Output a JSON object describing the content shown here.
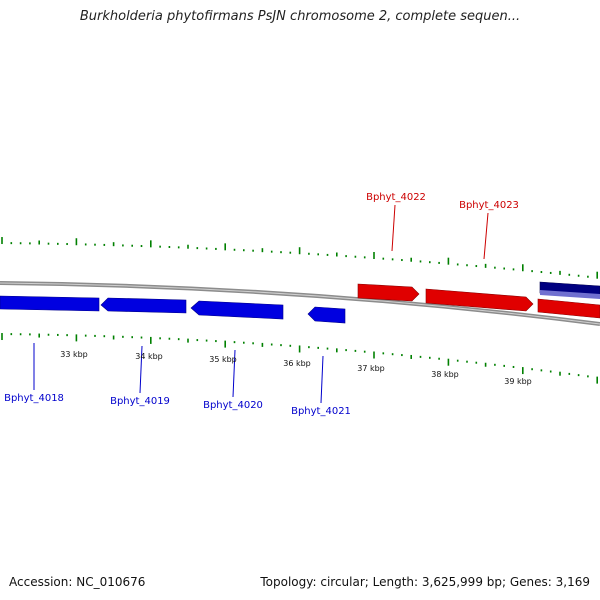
{
  "title": "Burkholderia phytofirmans PsJN chromosome 2, complete sequen...",
  "footer": {
    "accession": "Accession: NC_010676",
    "summary": "Topology: circular; Length: 3,625,999 bp; Genes: 3,169"
  },
  "colors": {
    "backbone": "#8c8c8c",
    "forward_gene": "#e00000",
    "reverse_gene": "#0000e0",
    "forward_label": "#cc0000",
    "reverse_label": "#0000cc",
    "gc_ticks": "#008000",
    "dark_gene": "#000080",
    "light_gene": "#7070d0"
  },
  "scale_labels": [
    "33 kbp",
    "34 kbp",
    "35 kbp",
    "36 kbp",
    "37 kbp",
    "38 kbp",
    "39 kbp"
  ],
  "genes": [
    {
      "id": "Bphyt_4018",
      "strand": "reverse"
    },
    {
      "id": "Bphyt_4019",
      "strand": "reverse"
    },
    {
      "id": "Bphyt_4020",
      "strand": "reverse"
    },
    {
      "id": "Bphyt_4021",
      "strand": "reverse"
    },
    {
      "id": "Bphyt_4022",
      "strand": "forward"
    },
    {
      "id": "Bphyt_4023",
      "strand": "forward"
    }
  ]
}
